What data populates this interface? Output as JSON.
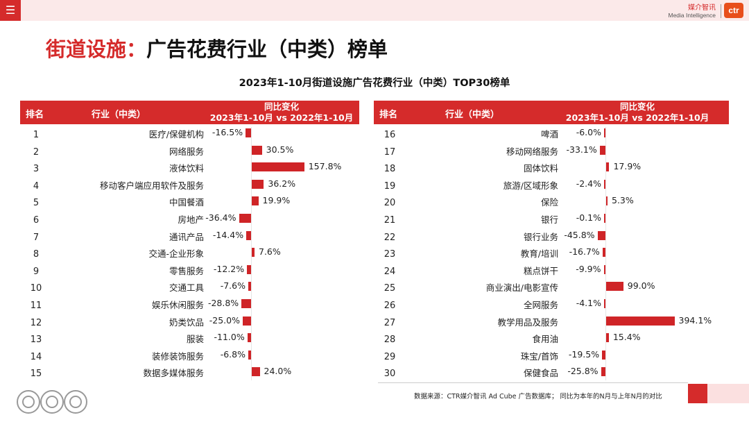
{
  "header": {
    "menu_icon": "hamburger-icon",
    "menu_glyph": "☰",
    "brand_cn": "媒介智讯",
    "brand_en": "Media Intelligence",
    "brand_logo": "ctr"
  },
  "title": {
    "red_part": "街道设施：",
    "black_part": "广告花费行业（中类）榜单"
  },
  "subtitle": "2023年1-10月街道设施广告花费行业（中类）TOP30榜单",
  "table_header": {
    "rank": "排名",
    "industry": "行业（中类）",
    "change_line1": "同比变化",
    "change_line2": "2023年1-10月 vs 2022年1-10月"
  },
  "colors": {
    "accent": "#d52b2b",
    "bar": "#cf2427"
  },
  "chart_data": {
    "type": "bar",
    "title": "2023年1-10月街道设施广告花费行业（中类）TOP30榜单",
    "ylabel": "同比变化 2023年1-10月 vs 2022年1-10月 (%)",
    "left": [
      {
        "rank": "1",
        "industry": "医疗/保健机构",
        "value": -16.5,
        "label": "-16.5%"
      },
      {
        "rank": "2",
        "industry": "网络服务",
        "value": 30.5,
        "label": "30.5%"
      },
      {
        "rank": "3",
        "industry": "液体饮料",
        "value": 157.8,
        "label": "157.8%"
      },
      {
        "rank": "4",
        "industry": "移动客户端应用软件及服务",
        "value": 36.2,
        "label": "36.2%"
      },
      {
        "rank": "5",
        "industry": "中国餐酒",
        "value": 19.9,
        "label": "19.9%"
      },
      {
        "rank": "6",
        "industry": "房地产",
        "value": -36.4,
        "label": "-36.4%"
      },
      {
        "rank": "7",
        "industry": "通讯产品",
        "value": -14.4,
        "label": "-14.4%"
      },
      {
        "rank": "8",
        "industry": "交通-企业形象",
        "value": 7.6,
        "label": "7.6%"
      },
      {
        "rank": "9",
        "industry": "零售服务",
        "value": -12.2,
        "label": "-12.2%"
      },
      {
        "rank": "10",
        "industry": "交通工具",
        "value": -7.6,
        "label": "-7.6%"
      },
      {
        "rank": "11",
        "industry": "娱乐休闲服务",
        "value": -28.8,
        "label": "-28.8%"
      },
      {
        "rank": "12",
        "industry": "奶类饮品",
        "value": -25.0,
        "label": "-25.0%"
      },
      {
        "rank": "13",
        "industry": "服装",
        "value": -11.0,
        "label": "-11.0%"
      },
      {
        "rank": "14",
        "industry": "装修装饰服务",
        "value": -6.8,
        "label": "-6.8%"
      },
      {
        "rank": "15",
        "industry": "数据多媒体服务",
        "value": 24.0,
        "label": "24.0%"
      }
    ],
    "right": [
      {
        "rank": "16",
        "industry": "啤酒",
        "value": -6.0,
        "label": "-6.0%"
      },
      {
        "rank": "17",
        "industry": "移动网络服务",
        "value": -33.1,
        "label": "-33.1%"
      },
      {
        "rank": "18",
        "industry": "固体饮料",
        "value": 17.9,
        "label": "17.9%"
      },
      {
        "rank": "19",
        "industry": "旅游/区域形象",
        "value": -2.4,
        "label": "-2.4%"
      },
      {
        "rank": "20",
        "industry": "保险",
        "value": 5.3,
        "label": "5.3%"
      },
      {
        "rank": "21",
        "industry": "银行",
        "value": -0.1,
        "label": "-0.1%"
      },
      {
        "rank": "22",
        "industry": "银行业务",
        "value": -45.8,
        "label": "-45.8%"
      },
      {
        "rank": "23",
        "industry": "教育/培训",
        "value": -16.7,
        "label": "-16.7%"
      },
      {
        "rank": "24",
        "industry": "糕点饼干",
        "value": -9.9,
        "label": "-9.9%"
      },
      {
        "rank": "25",
        "industry": "商业演出/电影宣传",
        "value": 99.0,
        "label": "99.0%"
      },
      {
        "rank": "26",
        "industry": "全网服务",
        "value": -4.1,
        "label": "-4.1%"
      },
      {
        "rank": "27",
        "industry": "教学用品及服务",
        "value": 394.1,
        "label": "394.1%"
      },
      {
        "rank": "28",
        "industry": "食用油",
        "value": 15.4,
        "label": "15.4%"
      },
      {
        "rank": "29",
        "industry": "珠宝/首饰",
        "value": -19.5,
        "label": "-19.5%"
      },
      {
        "rank": "30",
        "industry": "保健食品",
        "value": -25.8,
        "label": "-25.8%"
      }
    ]
  },
  "footer": {
    "source": "数据来源：CTR媒介智讯 Ad Cube 广告数据库；  同比为本年的N月与上年N月的对比"
  }
}
